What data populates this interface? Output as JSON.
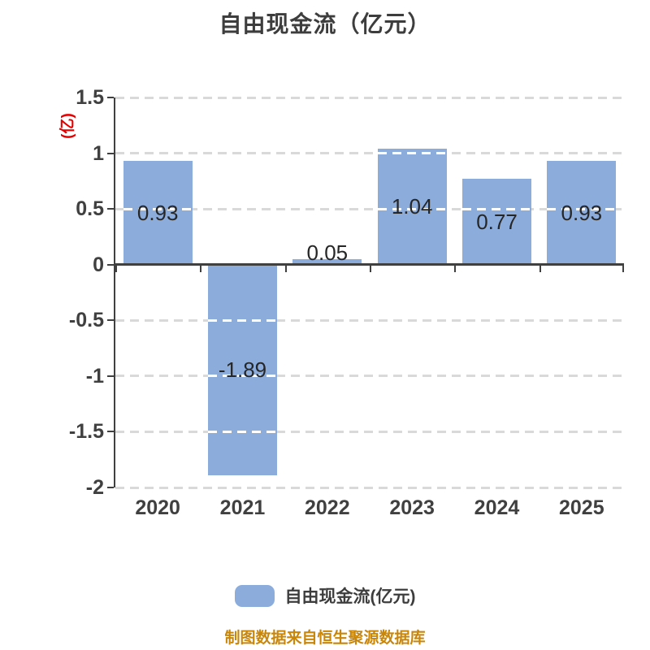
{
  "page": {
    "title": "自由现金流（亿元）",
    "y_axis_unit_label": "(亿)",
    "footer_note": "制图数据来自恒生聚源数据库"
  },
  "legend": {
    "items": [
      {
        "label": "自由现金流(亿元)",
        "swatch_color": "#8cacdb"
      }
    ]
  },
  "colors": {
    "background": "#ffffff",
    "bar": "#8cacdb",
    "title_text": "#3d3d3d",
    "axis_text": "#404040",
    "axis_line": "#404040",
    "value_label_text": "#262626",
    "gridline": "#d9d9d9",
    "gridline_over_bar": "#ffffff",
    "y_unit_red": "#e60000",
    "footer_orange": "#c8860a"
  },
  "chart_data": {
    "type": "bar",
    "title": "自由现金流（亿元）",
    "categories": [
      "2020",
      "2021",
      "2022",
      "2023",
      "2024",
      "2025"
    ],
    "series": [
      {
        "name": "自由现金流(亿元)",
        "values": [
          0.93,
          -1.89,
          0.05,
          1.04,
          0.77,
          0.93
        ],
        "color": "#8cacdb"
      }
    ],
    "value_labels": [
      "0.93",
      "-1.89",
      "0.05",
      "1.04",
      "0.77",
      "0.93"
    ],
    "xlabel": "",
    "ylabel": "(亿)",
    "ylim": [
      -2,
      1.5
    ],
    "yticks": [
      1.5,
      1,
      0.5,
      0,
      -0.5,
      -1,
      -1.5,
      -2
    ],
    "grid": "horizontal-dashed",
    "legend_position": "bottom"
  }
}
